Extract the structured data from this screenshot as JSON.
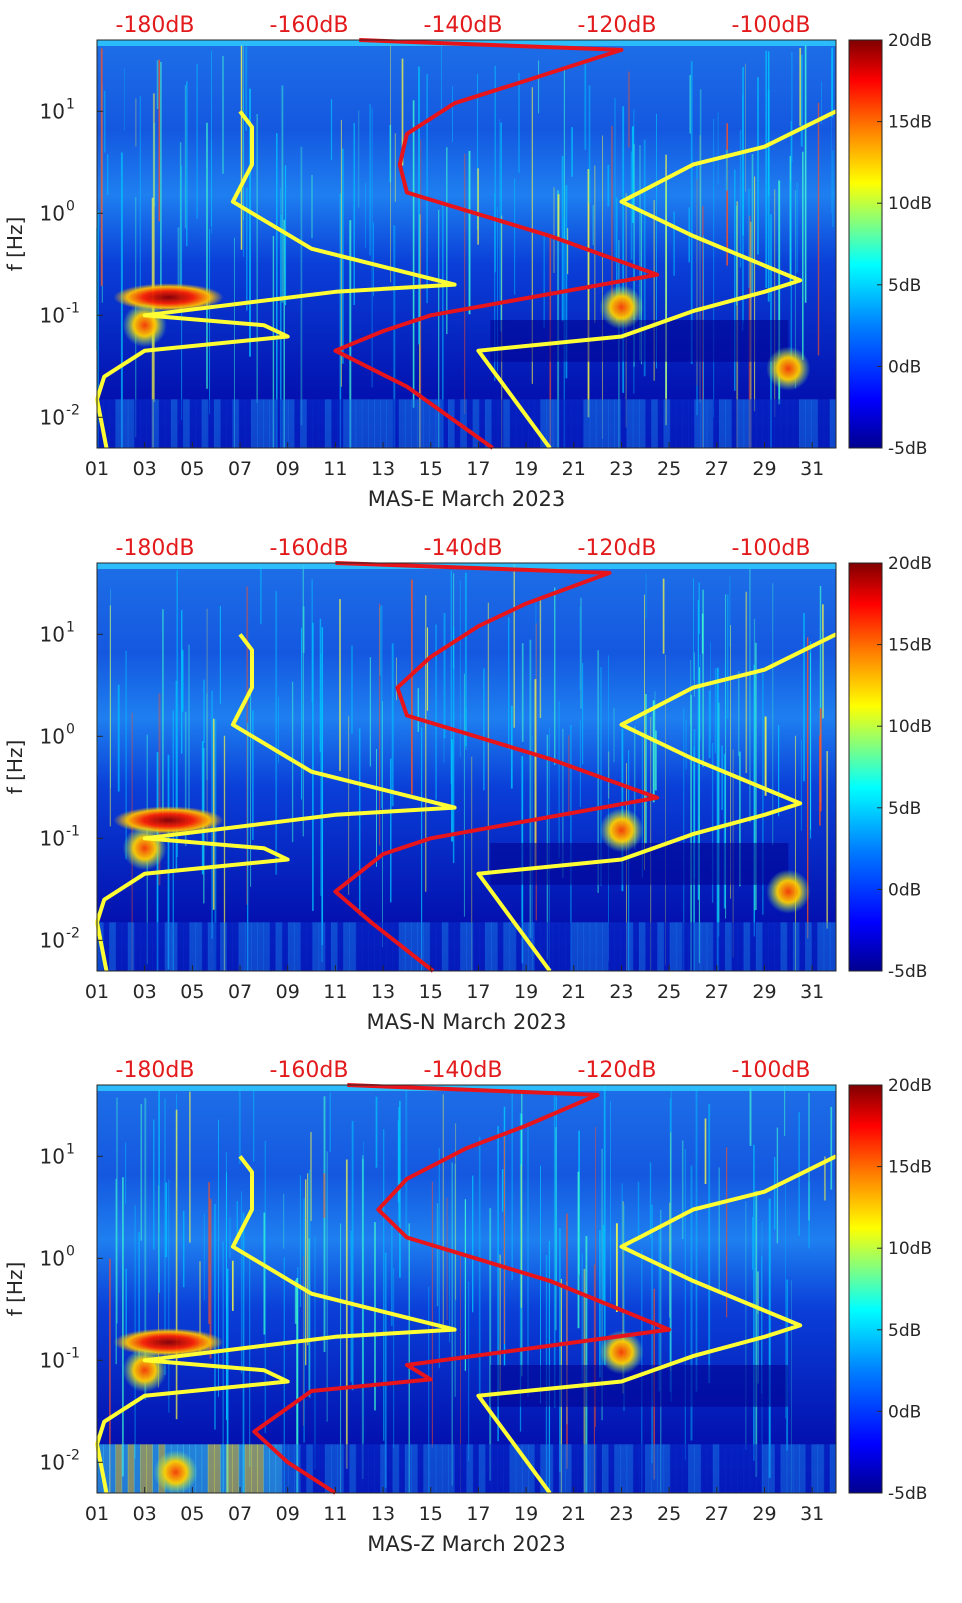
{
  "chart_data": {
    "type": "heatmap",
    "colorbar": {
      "ticks": [
        "20dB",
        "15dB",
        "10dB",
        "5dB",
        "0dB",
        "-5dB"
      ],
      "range": [
        -5,
        20
      ],
      "colormap": [
        "#00008f",
        "#0000ff",
        "#0080ff",
        "#00ffff",
        "#80ff80",
        "#ffff00",
        "#ff8000",
        "#ff0000",
        "#800000"
      ]
    },
    "top_axis": {
      "ticks": [
        "-180dB",
        "-160dB",
        "-140dB",
        "-120dB",
        "-100dB"
      ],
      "color": "#e31a1c"
    },
    "x_ticks": [
      "01",
      "03",
      "05",
      "07",
      "09",
      "11",
      "13",
      "15",
      "17",
      "19",
      "21",
      "23",
      "25",
      "27",
      "29",
      "31"
    ],
    "y_label": "f [Hz]",
    "y_ticks": [
      {
        "base": "10",
        "exp": "1"
      },
      {
        "base": "10",
        "exp": "0"
      },
      {
        "base": "10",
        "exp": "-1"
      },
      {
        "base": "10",
        "exp": "-2"
      }
    ],
    "y_tick_values": [
      10,
      1,
      0.1,
      0.01
    ],
    "ylim": [
      0.005,
      50
    ],
    "xlim": [
      1,
      32
    ],
    "yellow_curves": {
      "note": "noise model curves (x in day-of-March units, y in Hz)",
      "left": [
        [
          1.4,
          0.005
        ],
        [
          1.0,
          0.015
        ],
        [
          1.3,
          0.025
        ],
        [
          3.0,
          0.045
        ],
        [
          9.0,
          0.062
        ],
        [
          8.0,
          0.08
        ],
        [
          3.0,
          0.1
        ],
        [
          11.0,
          0.17
        ],
        [
          16.0,
          0.2
        ],
        [
          10.0,
          0.45
        ],
        [
          6.7,
          1.3
        ],
        [
          7.5,
          3.0
        ],
        [
          7.5,
          7.0
        ],
        [
          7.0,
          10.0
        ]
      ],
      "right": [
        [
          20.0,
          0.005
        ],
        [
          17.0,
          0.045
        ],
        [
          23.0,
          0.062
        ],
        [
          26.0,
          0.11
        ],
        [
          29.0,
          0.17
        ],
        [
          30.5,
          0.22
        ],
        [
          26.0,
          0.6
        ],
        [
          23.0,
          1.3
        ],
        [
          26.0,
          3.0
        ],
        [
          29.0,
          4.5
        ],
        [
          32.0,
          10.0
        ]
      ]
    },
    "panels": [
      {
        "xlabel": "MAS-E March 2023",
        "red_curve": [
          [
            17.6,
            0.005
          ],
          [
            14.0,
            0.02
          ],
          [
            11.0,
            0.045
          ],
          [
            13.0,
            0.07
          ],
          [
            15.0,
            0.1
          ],
          [
            24.5,
            0.25
          ],
          [
            20.0,
            0.6
          ],
          [
            14.0,
            1.6
          ],
          [
            13.7,
            3.0
          ],
          [
            14.0,
            6.0
          ],
          [
            16.0,
            12.0
          ],
          [
            19.0,
            20.0
          ],
          [
            23.0,
            40.0
          ],
          [
            12.0,
            50.0
          ]
        ],
        "hot_zones": [
          [
            4.0,
            0.15
          ],
          [
            3.0,
            0.08
          ],
          [
            30.0,
            0.03
          ],
          [
            23.0,
            0.12
          ]
        ]
      },
      {
        "xlabel": "MAS-N March 2023",
        "red_curve": [
          [
            15.1,
            0.005
          ],
          [
            12.5,
            0.015
          ],
          [
            11.0,
            0.03
          ],
          [
            13.0,
            0.07
          ],
          [
            15.0,
            0.1
          ],
          [
            24.5,
            0.25
          ],
          [
            20.0,
            0.6
          ],
          [
            14.0,
            1.6
          ],
          [
            13.6,
            3.0
          ],
          [
            15.0,
            6.0
          ],
          [
            17.0,
            12.0
          ],
          [
            19.0,
            20.0
          ],
          [
            22.5,
            40.0
          ],
          [
            11.0,
            50.0
          ]
        ],
        "hot_zones": [
          [
            4.0,
            0.15
          ],
          [
            3.0,
            0.08
          ],
          [
            30.0,
            0.03
          ],
          [
            23.0,
            0.12
          ]
        ]
      },
      {
        "xlabel": "MAS-Z March 2023",
        "red_curve": [
          [
            11.0,
            0.005
          ],
          [
            9.0,
            0.01
          ],
          [
            7.6,
            0.02
          ],
          [
            10.0,
            0.05
          ],
          [
            15.0,
            0.065
          ],
          [
            14.0,
            0.09
          ],
          [
            25.0,
            0.2
          ],
          [
            20.0,
            0.6
          ],
          [
            14.0,
            1.6
          ],
          [
            12.8,
            3.0
          ],
          [
            14.0,
            6.0
          ],
          [
            16.5,
            12.0
          ],
          [
            19.0,
            20.0
          ],
          [
            22.0,
            40.0
          ],
          [
            11.5,
            50.0
          ]
        ],
        "hot_zones": [
          [
            4.0,
            0.15
          ],
          [
            3.0,
            0.08
          ],
          [
            4.3,
            0.008
          ],
          [
            23.0,
            0.12
          ]
        ]
      }
    ]
  }
}
